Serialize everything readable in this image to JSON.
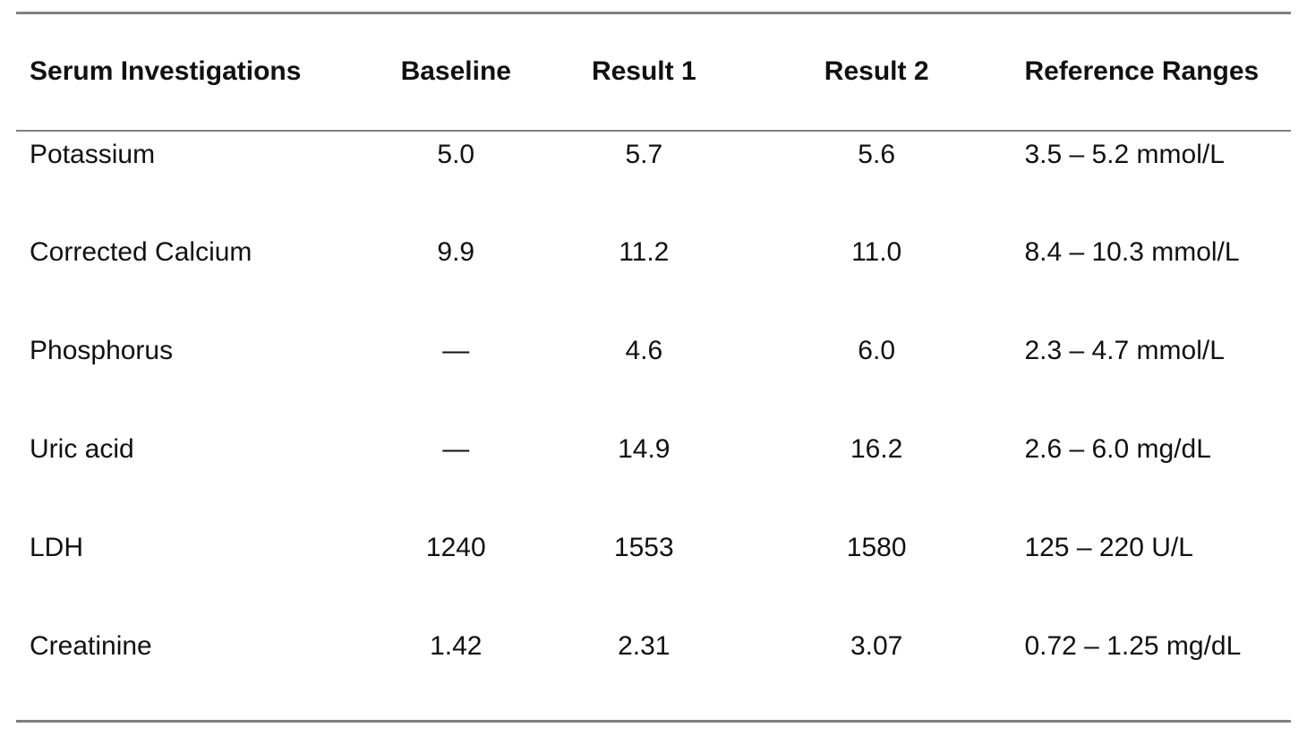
{
  "table": {
    "columns": {
      "investigation": "Serum Investigations",
      "baseline": "Baseline",
      "result1": "Result 1",
      "result2": "Result 2",
      "reference": "Reference Ranges"
    },
    "rows": [
      {
        "name": "Potassium",
        "baseline": "5.0",
        "result1": "5.7",
        "result2": "5.6",
        "reference": "3.5 – 5.2 mmol/L"
      },
      {
        "name": "Corrected Calcium",
        "baseline": "9.9",
        "result1": "11.2",
        "result2": "11.0",
        "reference": "8.4 – 10.3 mmol/L"
      },
      {
        "name": "Phosphorus",
        "baseline": "—",
        "result1": "4.6",
        "result2": "6.0",
        "reference": "2.3 – 4.7 mmol/L"
      },
      {
        "name": "Uric acid",
        "baseline": "—",
        "result1": "14.9",
        "result2": "16.2",
        "reference": "2.6 – 6.0 mg/dL"
      },
      {
        "name": "LDH",
        "baseline": "1240",
        "result1": "1553",
        "result2": "1580",
        "reference": "125 – 220 U/L"
      },
      {
        "name": "Creatinine",
        "baseline": "1.42",
        "result1": "2.31",
        "result2": "3.07",
        "reference": "0.72 – 1.25 mg/dL"
      }
    ],
    "colors": {
      "rule": "#7f7f7f",
      "text": "#111111",
      "background": "#ffffff"
    }
  }
}
